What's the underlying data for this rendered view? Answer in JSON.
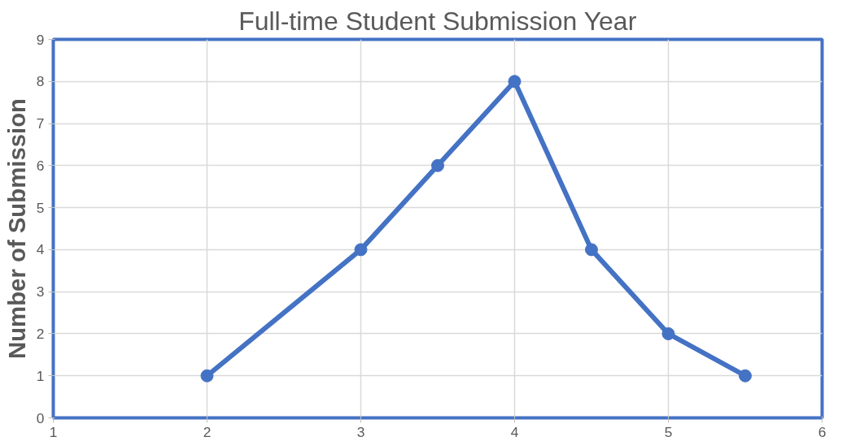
{
  "chart_data": {
    "type": "line",
    "title": "Full-time Student Submission Year",
    "ylabel": "Number of Submission",
    "x": [
      2,
      3,
      3.5,
      4,
      4.5,
      5,
      5.5
    ],
    "series": [
      {
        "color": "#4472c4",
        "values": [
          1,
          4,
          6,
          8,
          4,
          2,
          1
        ]
      }
    ],
    "xlim": [
      1,
      6
    ],
    "xticks": [
      1,
      2,
      3,
      4,
      5,
      6
    ],
    "ylim": [
      0,
      9
    ],
    "yticks": [
      0,
      1,
      2,
      3,
      4,
      5,
      6,
      7,
      8,
      9
    ],
    "grid": true,
    "marker": "circle",
    "line_style": "solid"
  }
}
